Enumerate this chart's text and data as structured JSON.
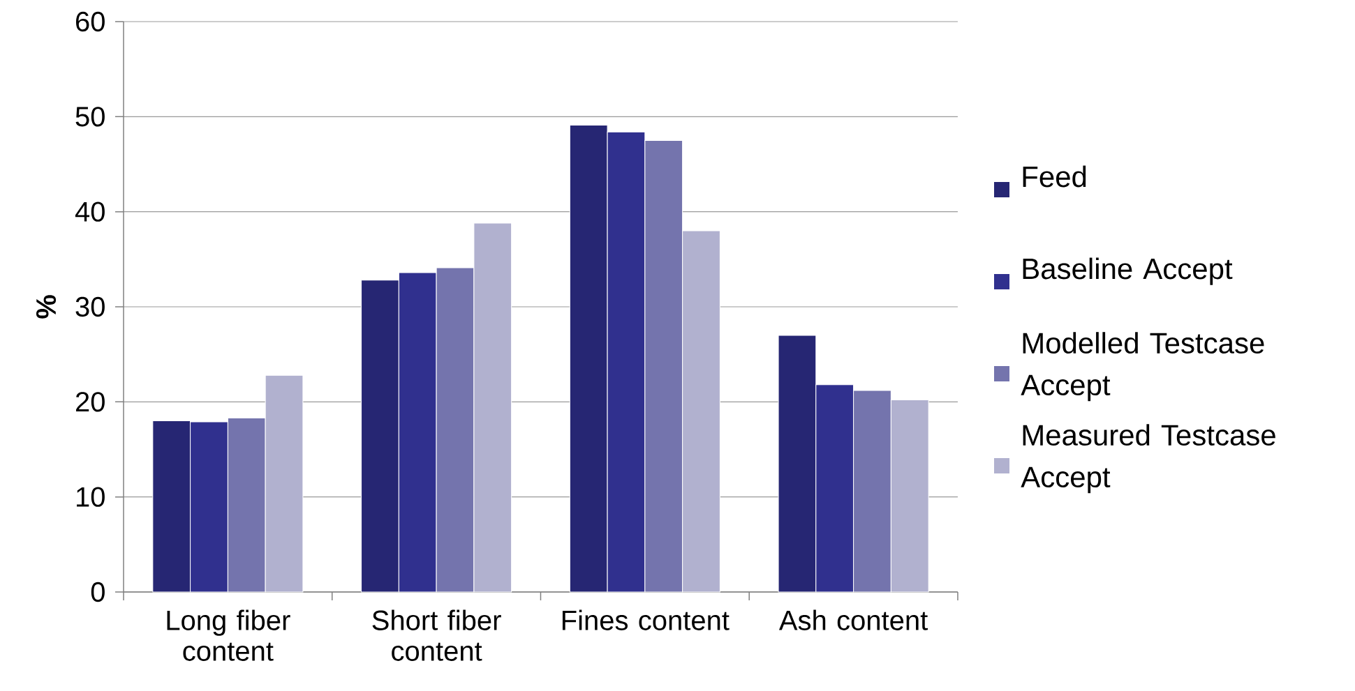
{
  "chart_data": {
    "type": "bar",
    "ylabel": "%",
    "categories": [
      "Long fiber content",
      "Short fiber content",
      "Fines content",
      "Ash content"
    ],
    "series": [
      {
        "name": "Feed",
        "color": "#262673",
        "values": [
          18.0,
          32.8,
          49.1,
          27.0
        ]
      },
      {
        "name": "Baseline Accept",
        "color": "#30308e",
        "values": [
          17.9,
          33.6,
          48.4,
          21.8
        ]
      },
      {
        "name": "Modelled Testcase Accept",
        "color": "#7474ad",
        "values": [
          18.3,
          34.1,
          47.5,
          21.2
        ]
      },
      {
        "name": "Measured Testcase Accept",
        "color": "#b1b1cf",
        "values": [
          22.8,
          38.8,
          38.0,
          20.2
        ]
      }
    ],
    "ylim": [
      0,
      60
    ],
    "yticks": [
      0,
      10,
      20,
      30,
      40,
      50,
      60
    ],
    "grid": "y",
    "legend": "right"
  }
}
